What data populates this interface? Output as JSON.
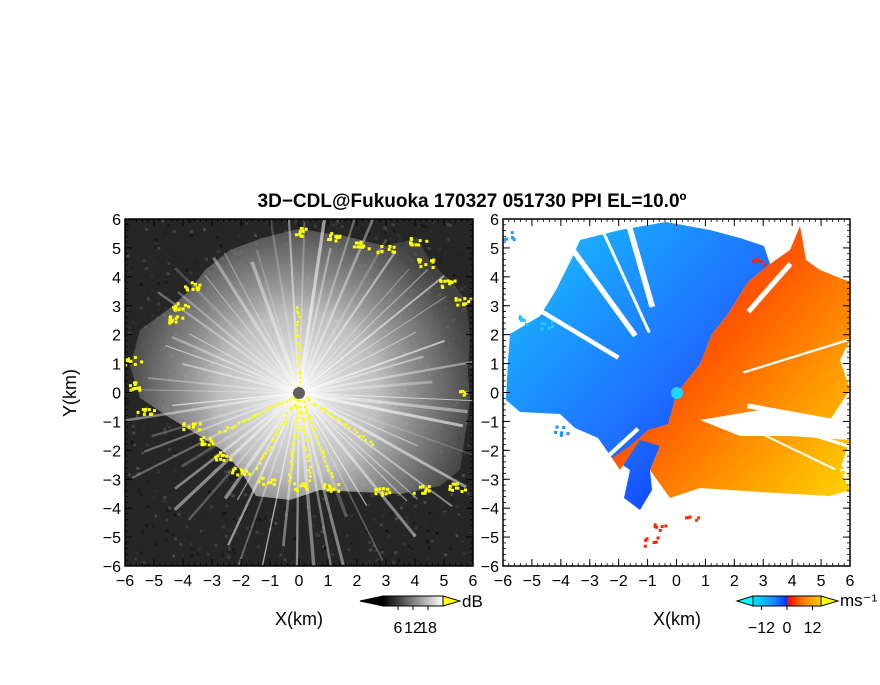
{
  "chart_data": {
    "type": "heatmap",
    "title": "3D−CDL@Fukuoka 170327 051730 PPI EL=10.0º",
    "panels": [
      {
        "id": "snr",
        "xlabel": "X(km)",
        "ylabel": "Y(km)",
        "xlim": [
          -6,
          6
        ],
        "ylim": [
          -6,
          6
        ],
        "xticks": [
          "−6",
          "−5",
          "−4",
          "−3",
          "−2",
          "−1",
          "0",
          "1",
          "2",
          "3",
          "4",
          "5",
          "6"
        ],
        "yticks": [
          "6",
          "5",
          "4",
          "3",
          "2",
          "1",
          "0",
          "−1",
          "−2",
          "−3",
          "−4",
          "−5",
          "−6"
        ],
        "colorbar": {
          "unit": "dB",
          "range": [
            0,
            24
          ],
          "tick_values": [
            6,
            12,
            18
          ],
          "tick_labels": [
            "6",
            "12",
            "18"
          ],
          "colors": [
            "#000000",
            "#ffffff"
          ],
          "arrow_low_color": "#000000",
          "arrow_high_color": "#ffff00"
        },
        "marker": {
          "x": 0,
          "y": 0,
          "color": "#606060"
        },
        "highlight_color": "#ffff00"
      },
      {
        "id": "velocity",
        "xlabel": "X(km)",
        "xlim": [
          -6,
          6
        ],
        "ylim": [
          -6,
          6
        ],
        "xticks": [
          "−6",
          "−5",
          "−4",
          "−3",
          "−2",
          "−1",
          "0",
          "1",
          "2",
          "3",
          "4",
          "5",
          "6"
        ],
        "colorbar": {
          "unit": "ms⁻¹",
          "range": [
            -16,
            16
          ],
          "tick_values": [
            -12,
            0,
            12
          ],
          "tick_labels": [
            "−12",
            "0",
            "12"
          ],
          "colors": [
            "#00e5ff",
            "#1a8cff",
            "#0033ff",
            "#ff0000",
            "#ff8000",
            "#ffd000"
          ],
          "arrow_low_color": "#00ffff",
          "arrow_high_color": "#ffff00"
        },
        "marker": {
          "x": 0,
          "y": 0,
          "color": "#19d9ff"
        }
      }
    ]
  }
}
